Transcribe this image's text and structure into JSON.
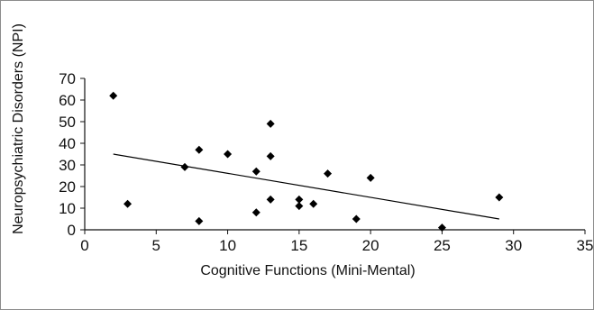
{
  "chart_data": {
    "type": "scatter",
    "title": "",
    "xlabel": "Cognitive Functions (Mini-Mental)",
    "ylabel": "Neuropsychiatric Disorders (NPI)",
    "xlim": [
      0,
      35
    ],
    "ylim": [
      0,
      70
    ],
    "xticks": [
      0,
      5,
      10,
      15,
      20,
      25,
      30,
      35
    ],
    "yticks": [
      0,
      10,
      20,
      30,
      40,
      50,
      60,
      70
    ],
    "grid": false,
    "legend": "none",
    "marker": "diamond",
    "marker_color": "#000000",
    "points": [
      {
        "x": 2,
        "y": 62
      },
      {
        "x": 3,
        "y": 12
      },
      {
        "x": 7,
        "y": 29
      },
      {
        "x": 8,
        "y": 37
      },
      {
        "x": 8,
        "y": 4
      },
      {
        "x": 10,
        "y": 35
      },
      {
        "x": 12,
        "y": 27
      },
      {
        "x": 12,
        "y": 8
      },
      {
        "x": 13,
        "y": 49
      },
      {
        "x": 13,
        "y": 34
      },
      {
        "x": 13,
        "y": 14
      },
      {
        "x": 15,
        "y": 14
      },
      {
        "x": 15,
        "y": 11
      },
      {
        "x": 16,
        "y": 12
      },
      {
        "x": 17,
        "y": 26
      },
      {
        "x": 19,
        "y": 5
      },
      {
        "x": 20,
        "y": 24
      },
      {
        "x": 25,
        "y": 1
      },
      {
        "x": 29,
        "y": 15
      }
    ],
    "trendline": {
      "x": [
        2,
        29
      ],
      "y": [
        35,
        5
      ]
    }
  }
}
